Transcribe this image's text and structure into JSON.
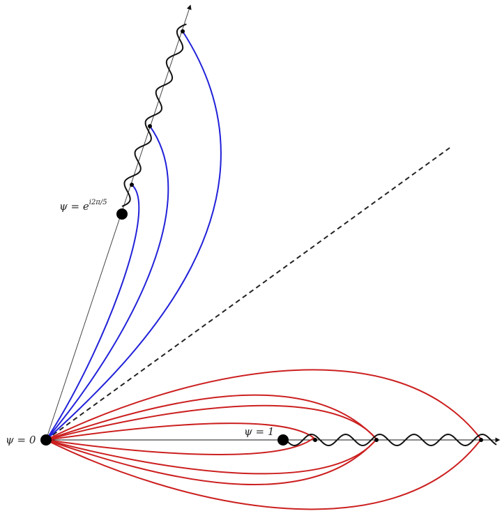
{
  "labels": {
    "origin": "ψ = 0",
    "one": "ψ = 1",
    "rot_base": "ψ = e",
    "rot_exp": "i2π/5"
  },
  "colors": {
    "blue": "#2121d9",
    "red": "#cc1f1f",
    "black": "#111111"
  }
}
